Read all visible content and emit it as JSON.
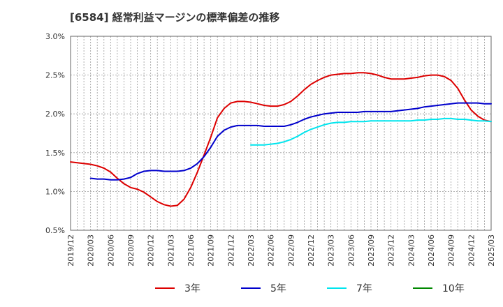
{
  "chart_data": {
    "type": "line",
    "title": "[6584]  経常利益マージンの標準偏差の推移",
    "ylim": [
      0.5,
      3.0
    ],
    "y_ticks": [
      "0.5%",
      "1.0%",
      "1.5%",
      "2.0%",
      "2.5%",
      "3.0%"
    ],
    "y_tick_values": [
      0.5,
      1.0,
      1.5,
      2.0,
      2.5,
      3.0
    ],
    "x_ticks": [
      "2019/12",
      "2020/03",
      "2020/06",
      "2020/09",
      "2020/12",
      "2021/03",
      "2021/06",
      "2021/09",
      "2021/12",
      "2022/03",
      "2022/06",
      "2022/09",
      "2022/12",
      "2023/03",
      "2023/06",
      "2023/09",
      "2023/12",
      "2024/03",
      "2024/06",
      "2024/09",
      "2024/12",
      "2025/03"
    ],
    "grid": true,
    "legend_position": "bottom",
    "series": [
      {
        "name": "3年",
        "color": "#dd0000",
        "points": [
          [
            "2019/12",
            1.38
          ],
          [
            "2020/01",
            1.37
          ],
          [
            "2020/02",
            1.36
          ],
          [
            "2020/03",
            1.35
          ],
          [
            "2020/04",
            1.33
          ],
          [
            "2020/05",
            1.3
          ],
          [
            "2020/06",
            1.25
          ],
          [
            "2020/07",
            1.17
          ],
          [
            "2020/08",
            1.1
          ],
          [
            "2020/09",
            1.05
          ],
          [
            "2020/10",
            1.03
          ],
          [
            "2020/11",
            0.99
          ],
          [
            "2020/12",
            0.93
          ],
          [
            "2021/01",
            0.87
          ],
          [
            "2021/02",
            0.83
          ],
          [
            "2021/03",
            0.81
          ],
          [
            "2021/04",
            0.82
          ],
          [
            "2021/05",
            0.9
          ],
          [
            "2021/06",
            1.05
          ],
          [
            "2021/07",
            1.25
          ],
          [
            "2021/08",
            1.47
          ],
          [
            "2021/09",
            1.7
          ],
          [
            "2021/10",
            1.95
          ],
          [
            "2021/11",
            2.07
          ],
          [
            "2021/12",
            2.14
          ],
          [
            "2022/01",
            2.16
          ],
          [
            "2022/02",
            2.16
          ],
          [
            "2022/03",
            2.15
          ],
          [
            "2022/04",
            2.13
          ],
          [
            "2022/05",
            2.11
          ],
          [
            "2022/06",
            2.1
          ],
          [
            "2022/07",
            2.1
          ],
          [
            "2022/08",
            2.12
          ],
          [
            "2022/09",
            2.16
          ],
          [
            "2022/10",
            2.23
          ],
          [
            "2022/11",
            2.31
          ],
          [
            "2022/12",
            2.38
          ],
          [
            "2023/01",
            2.43
          ],
          [
            "2023/02",
            2.47
          ],
          [
            "2023/03",
            2.5
          ],
          [
            "2023/04",
            2.51
          ],
          [
            "2023/05",
            2.52
          ],
          [
            "2023/06",
            2.52
          ],
          [
            "2023/07",
            2.53
          ],
          [
            "2023/08",
            2.53
          ],
          [
            "2023/09",
            2.52
          ],
          [
            "2023/10",
            2.5
          ],
          [
            "2023/11",
            2.47
          ],
          [
            "2023/12",
            2.45
          ],
          [
            "2024/01",
            2.45
          ],
          [
            "2024/02",
            2.45
          ],
          [
            "2024/03",
            2.46
          ],
          [
            "2024/04",
            2.47
          ],
          [
            "2024/05",
            2.49
          ],
          [
            "2024/06",
            2.5
          ],
          [
            "2024/07",
            2.5
          ],
          [
            "2024/08",
            2.48
          ],
          [
            "2024/09",
            2.43
          ],
          [
            "2024/10",
            2.33
          ],
          [
            "2024/11",
            2.18
          ],
          [
            "2024/12",
            2.05
          ],
          [
            "2025/01",
            1.97
          ],
          [
            "2025/02",
            1.92
          ],
          [
            "2025/03",
            1.9
          ]
        ]
      },
      {
        "name": "5年",
        "color": "#0000cc",
        "points": [
          [
            "2020/03",
            1.17
          ],
          [
            "2020/04",
            1.16
          ],
          [
            "2020/05",
            1.16
          ],
          [
            "2020/06",
            1.15
          ],
          [
            "2020/07",
            1.15
          ],
          [
            "2020/08",
            1.16
          ],
          [
            "2020/09",
            1.18
          ],
          [
            "2020/10",
            1.23
          ],
          [
            "2020/11",
            1.26
          ],
          [
            "2020/12",
            1.27
          ],
          [
            "2021/01",
            1.27
          ],
          [
            "2021/02",
            1.26
          ],
          [
            "2021/03",
            1.26
          ],
          [
            "2021/04",
            1.26
          ],
          [
            "2021/05",
            1.27
          ],
          [
            "2021/06",
            1.3
          ],
          [
            "2021/07",
            1.36
          ],
          [
            "2021/08",
            1.45
          ],
          [
            "2021/09",
            1.57
          ],
          [
            "2021/10",
            1.71
          ],
          [
            "2021/11",
            1.79
          ],
          [
            "2021/12",
            1.83
          ],
          [
            "2022/01",
            1.85
          ],
          [
            "2022/02",
            1.85
          ],
          [
            "2022/03",
            1.85
          ],
          [
            "2022/04",
            1.85
          ],
          [
            "2022/05",
            1.84
          ],
          [
            "2022/06",
            1.84
          ],
          [
            "2022/07",
            1.84
          ],
          [
            "2022/08",
            1.84
          ],
          [
            "2022/09",
            1.86
          ],
          [
            "2022/10",
            1.89
          ],
          [
            "2022/11",
            1.93
          ],
          [
            "2022/12",
            1.96
          ],
          [
            "2023/01",
            1.98
          ],
          [
            "2023/02",
            2.0
          ],
          [
            "2023/03",
            2.01
          ],
          [
            "2023/04",
            2.02
          ],
          [
            "2023/05",
            2.02
          ],
          [
            "2023/06",
            2.02
          ],
          [
            "2023/07",
            2.02
          ],
          [
            "2023/08",
            2.03
          ],
          [
            "2023/09",
            2.03
          ],
          [
            "2023/10",
            2.03
          ],
          [
            "2023/11",
            2.03
          ],
          [
            "2023/12",
            2.03
          ],
          [
            "2024/01",
            2.04
          ],
          [
            "2024/02",
            2.05
          ],
          [
            "2024/03",
            2.06
          ],
          [
            "2024/04",
            2.07
          ],
          [
            "2024/05",
            2.09
          ],
          [
            "2024/06",
            2.1
          ],
          [
            "2024/07",
            2.11
          ],
          [
            "2024/08",
            2.12
          ],
          [
            "2024/09",
            2.13
          ],
          [
            "2024/10",
            2.14
          ],
          [
            "2024/11",
            2.14
          ],
          [
            "2024/12",
            2.14
          ],
          [
            "2025/01",
            2.14
          ],
          [
            "2025/02",
            2.13
          ],
          [
            "2025/03",
            2.13
          ]
        ]
      },
      {
        "name": "7年",
        "color": "#00e5ee",
        "points": [
          [
            "2022/03",
            1.6
          ],
          [
            "2022/04",
            1.6
          ],
          [
            "2022/05",
            1.6
          ],
          [
            "2022/06",
            1.61
          ],
          [
            "2022/07",
            1.62
          ],
          [
            "2022/08",
            1.64
          ],
          [
            "2022/09",
            1.67
          ],
          [
            "2022/10",
            1.71
          ],
          [
            "2022/11",
            1.76
          ],
          [
            "2022/12",
            1.8
          ],
          [
            "2023/01",
            1.83
          ],
          [
            "2023/02",
            1.86
          ],
          [
            "2023/03",
            1.88
          ],
          [
            "2023/04",
            1.89
          ],
          [
            "2023/05",
            1.89
          ],
          [
            "2023/06",
            1.9
          ],
          [
            "2023/07",
            1.9
          ],
          [
            "2023/08",
            1.9
          ],
          [
            "2023/09",
            1.91
          ],
          [
            "2023/10",
            1.91
          ],
          [
            "2023/11",
            1.91
          ],
          [
            "2023/12",
            1.91
          ],
          [
            "2024/01",
            1.91
          ],
          [
            "2024/02",
            1.91
          ],
          [
            "2024/03",
            1.91
          ],
          [
            "2024/04",
            1.92
          ],
          [
            "2024/05",
            1.92
          ],
          [
            "2024/06",
            1.93
          ],
          [
            "2024/07",
            1.93
          ],
          [
            "2024/08",
            1.94
          ],
          [
            "2024/09",
            1.94
          ],
          [
            "2024/10",
            1.93
          ],
          [
            "2024/11",
            1.93
          ],
          [
            "2024/12",
            1.92
          ],
          [
            "2025/01",
            1.91
          ],
          [
            "2025/02",
            1.91
          ],
          [
            "2025/03",
            1.9
          ]
        ]
      },
      {
        "name": "10年",
        "color": "#008800",
        "points": []
      }
    ]
  }
}
